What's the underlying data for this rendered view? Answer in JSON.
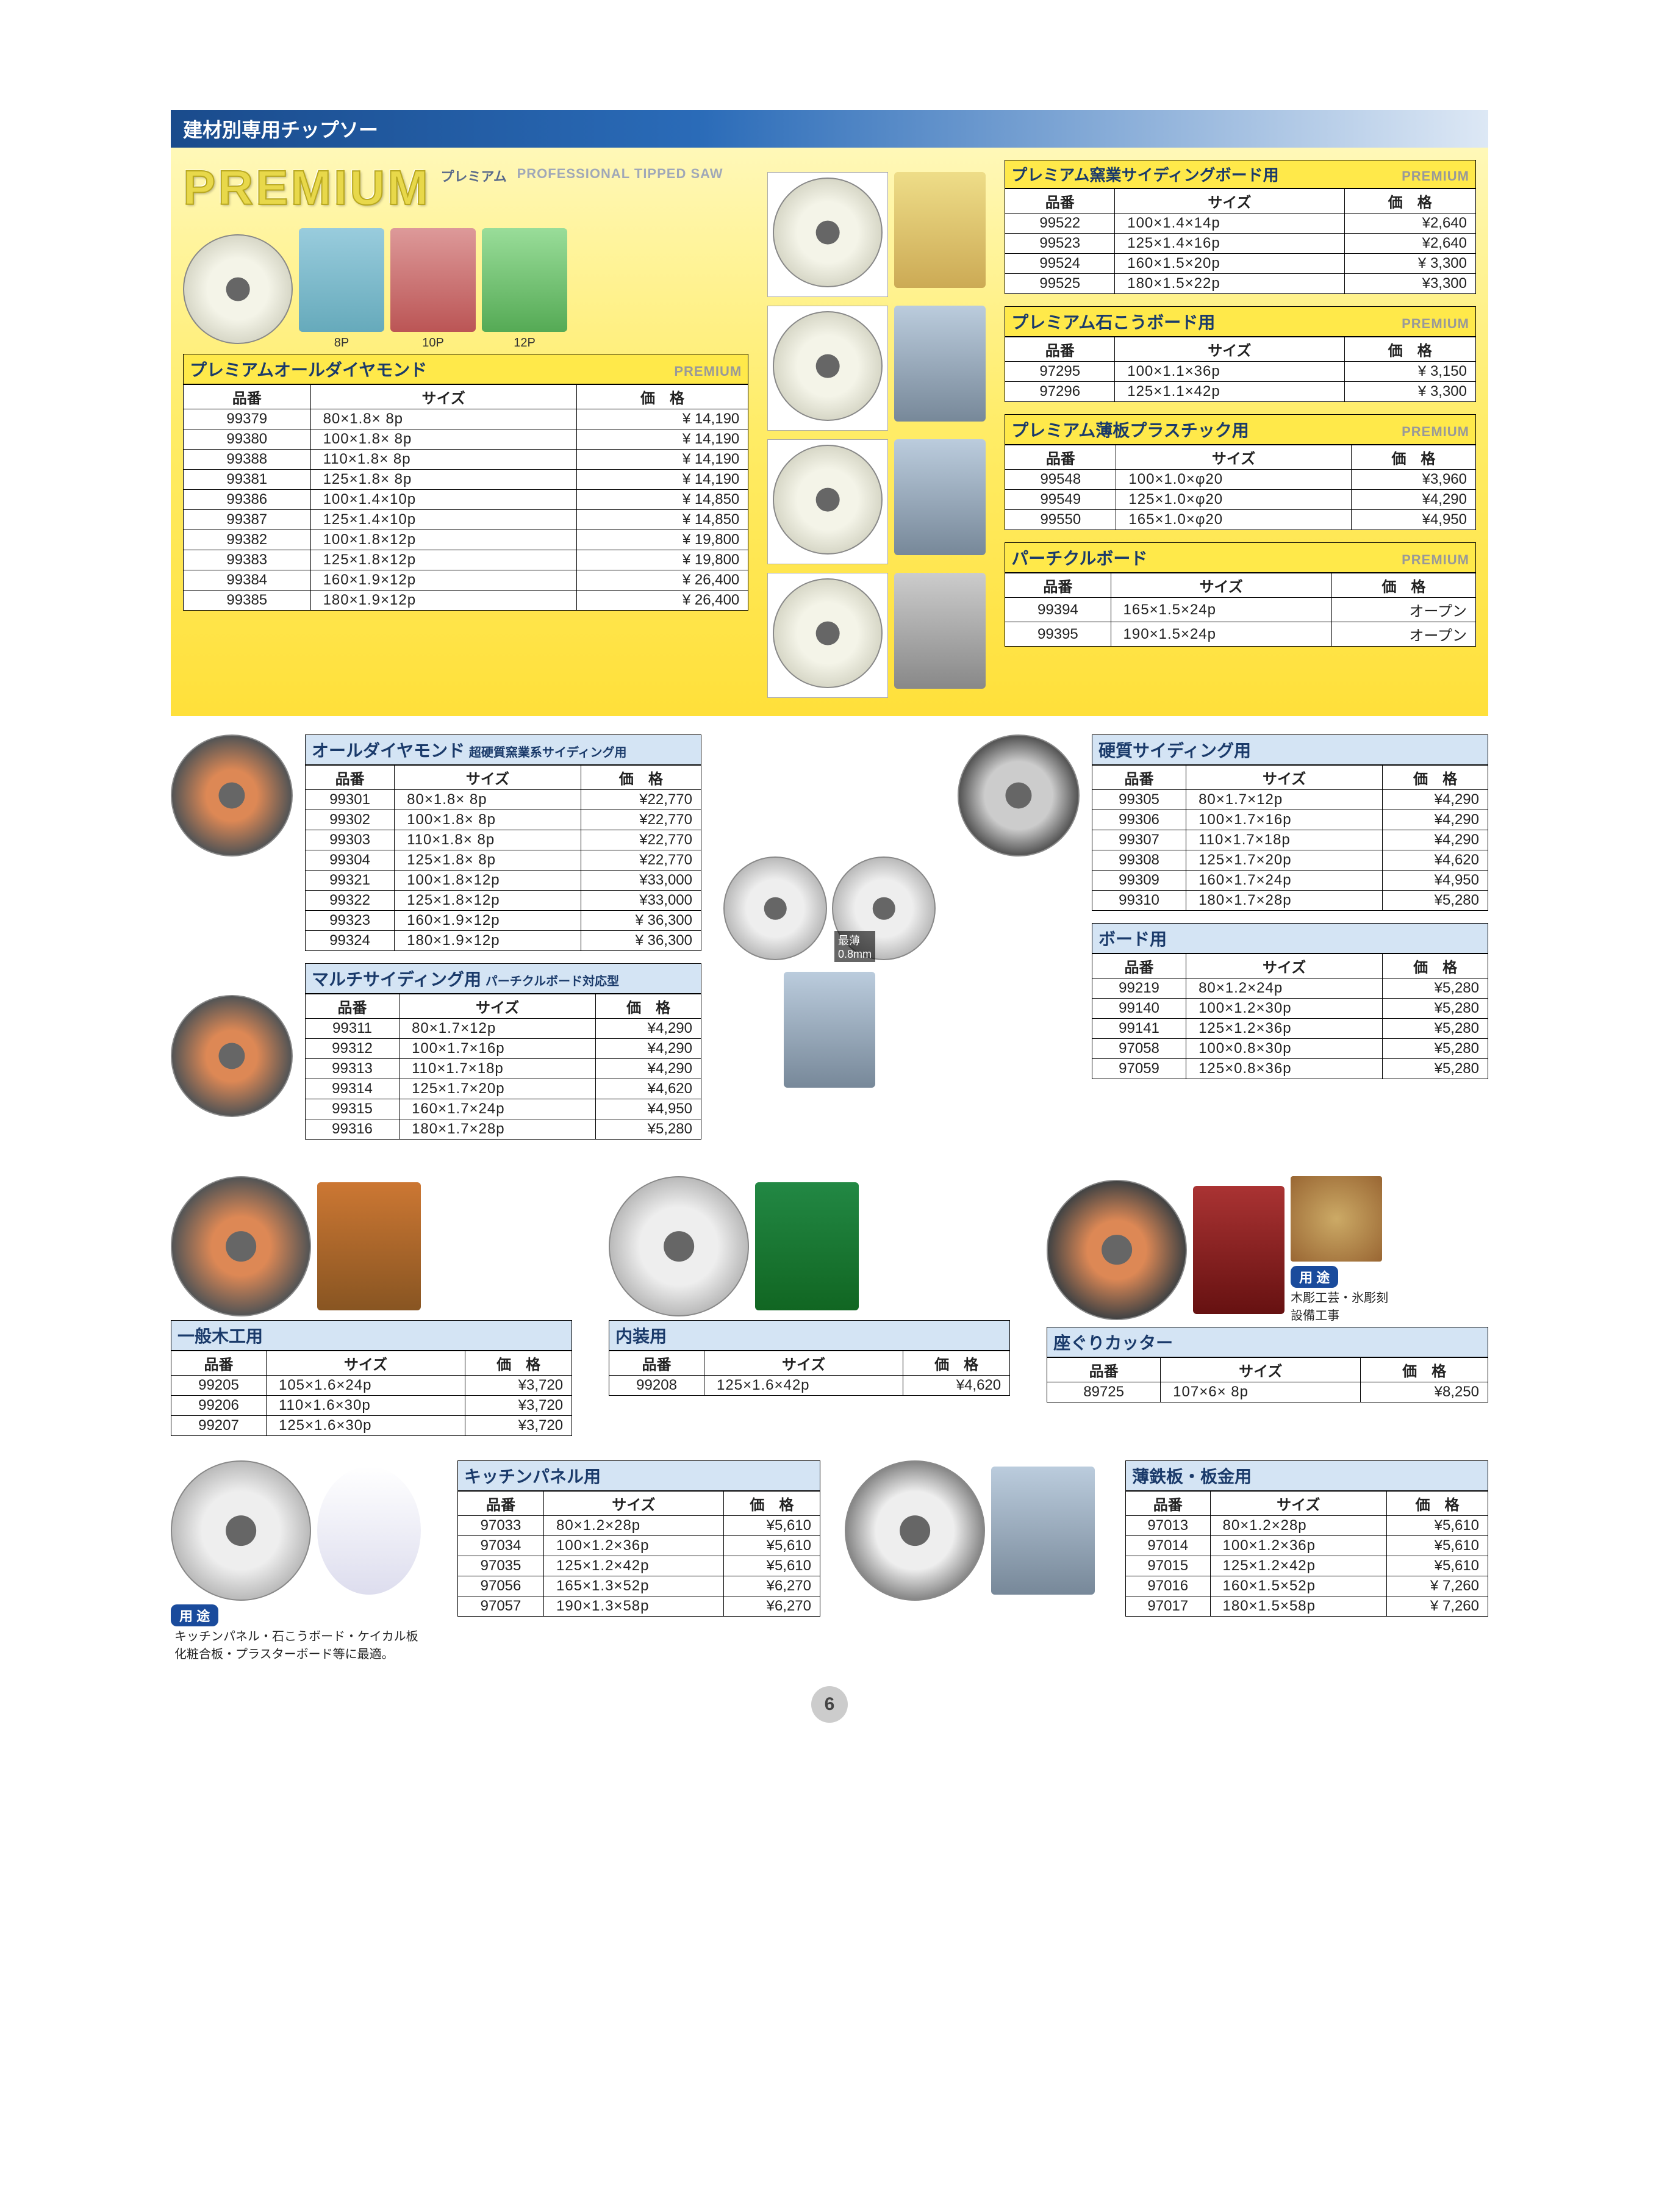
{
  "header": "建材別専用チップソー",
  "premium": {
    "title": "PREMIUM",
    "sub1": "プレミアム",
    "sub2": "PROFESSIONAL TIPPED SAW"
  },
  "pkg_labels": [
    "8P",
    "10P",
    "12P"
  ],
  "cols": {
    "code": "品番",
    "size": "サイズ",
    "price": "価　格"
  },
  "premium_tag": "PREMIUM",
  "tables": {
    "all_diamond_premium": {
      "title": "プレミアムオールダイヤモンド",
      "rows": [
        [
          "99379",
          "80×1.8×  8p",
          "¥ 14,190"
        ],
        [
          "99380",
          "100×1.8×  8p",
          "¥ 14,190"
        ],
        [
          "99388",
          "110×1.8×  8p",
          "¥ 14,190"
        ],
        [
          "99381",
          "125×1.8×  8p",
          "¥ 14,190"
        ],
        [
          "99386",
          "100×1.4×10p",
          "¥ 14,850"
        ],
        [
          "99387",
          "125×1.4×10p",
          "¥ 14,850"
        ],
        [
          "99382",
          "100×1.8×12p",
          "¥ 19,800"
        ],
        [
          "99383",
          "125×1.8×12p",
          "¥ 19,800"
        ],
        [
          "99384",
          "160×1.9×12p",
          "¥ 26,400"
        ],
        [
          "99385",
          "180×1.9×12p",
          "¥ 26,400"
        ]
      ]
    },
    "yogyo_siding": {
      "title": "プレミアム窯業サイディングボード用",
      "rows": [
        [
          "99522",
          "100×1.4×14p",
          "¥2,640"
        ],
        [
          "99523",
          "125×1.4×16p",
          "¥2,640"
        ],
        [
          "99524",
          "160×1.5×20p",
          "¥ 3,300"
        ],
        [
          "99525",
          "180×1.5×22p",
          "¥3,300"
        ]
      ]
    },
    "gypsum": {
      "title": "プレミアム石こうボード用",
      "rows": [
        [
          "97295",
          "100×1.1×36p",
          "¥ 3,150"
        ],
        [
          "97296",
          "125×1.1×42p",
          "¥ 3,300"
        ]
      ]
    },
    "thin_plastic": {
      "title": "プレミアム薄板プラスチック用",
      "rows": [
        [
          "99548",
          "100×1.0×φ20",
          "¥3,960"
        ],
        [
          "99549",
          "125×1.0×φ20",
          "¥4,290"
        ],
        [
          "99550",
          "165×1.0×φ20",
          "¥4,950"
        ]
      ]
    },
    "particle": {
      "title": "パーチクルボード",
      "rows": [
        [
          "99394",
          "165×1.5×24p",
          "オープン"
        ],
        [
          "99395",
          "190×1.5×24p",
          "オープン"
        ]
      ]
    },
    "all_diamond": {
      "title": "オールダイヤモンド",
      "sub": "超硬質窯業系サイディング用",
      "rows": [
        [
          "99301",
          "80×1.8×  8p",
          "¥22,770"
        ],
        [
          "99302",
          "100×1.8×  8p",
          "¥22,770"
        ],
        [
          "99303",
          "110×1.8×  8p",
          "¥22,770"
        ],
        [
          "99304",
          "125×1.8×  8p",
          "¥22,770"
        ],
        [
          "99321",
          "100×1.8×12p",
          "¥33,000"
        ],
        [
          "99322",
          "125×1.8×12p",
          "¥33,000"
        ],
        [
          "99323",
          "160×1.9×12p",
          "¥ 36,300"
        ],
        [
          "99324",
          "180×1.9×12p",
          "¥ 36,300"
        ]
      ]
    },
    "multi_siding": {
      "title": "マルチサイディング用",
      "sub": "パーチクルボード対応型",
      "rows": [
        [
          "99311",
          "80×1.7×12p",
          "¥4,290"
        ],
        [
          "99312",
          "100×1.7×16p",
          "¥4,290"
        ],
        [
          "99313",
          "110×1.7×18p",
          "¥4,290"
        ],
        [
          "99314",
          "125×1.7×20p",
          "¥4,620"
        ],
        [
          "99315",
          "160×1.7×24p",
          "¥4,950"
        ],
        [
          "99316",
          "180×1.7×28p",
          "¥5,280"
        ]
      ]
    },
    "hard_siding": {
      "title": "硬質サイディング用",
      "rows": [
        [
          "99305",
          "80×1.7×12p",
          "¥4,290"
        ],
        [
          "99306",
          "100×1.7×16p",
          "¥4,290"
        ],
        [
          "99307",
          "110×1.7×18p",
          "¥4,290"
        ],
        [
          "99308",
          "125×1.7×20p",
          "¥4,620"
        ],
        [
          "99309",
          "160×1.7×24p",
          "¥4,950"
        ],
        [
          "99310",
          "180×1.7×28p",
          "¥5,280"
        ]
      ]
    },
    "board": {
      "title": "ボード用",
      "rows": [
        [
          "99219",
          "80×1.2×24p",
          "¥5,280"
        ],
        [
          "99140",
          "100×1.2×30p",
          "¥5,280"
        ],
        [
          "99141",
          "125×1.2×36p",
          "¥5,280"
        ],
        [
          "97058",
          "100×0.8×30p",
          "¥5,280"
        ],
        [
          "97059",
          "125×0.8×36p",
          "¥5,280"
        ]
      ]
    },
    "wood": {
      "title": "一般木工用",
      "rows": [
        [
          "99205",
          "105×1.6×24p",
          "¥3,720"
        ],
        [
          "99206",
          "110×1.6×30p",
          "¥3,720"
        ],
        [
          "99207",
          "125×1.6×30p",
          "¥3,720"
        ]
      ]
    },
    "interior": {
      "title": "内装用",
      "rows": [
        [
          "99208",
          "125×1.6×42p",
          "¥4,620"
        ]
      ]
    },
    "zaguri": {
      "title": "座ぐりカッター",
      "rows": [
        [
          "89725",
          "107×6×  8p",
          "¥8,250"
        ]
      ],
      "usage_label": "用 途",
      "usage_text": "木彫工芸・氷彫刻\n設備工事"
    },
    "kitchen": {
      "title": "キッチンパネル用",
      "rows": [
        [
          "97033",
          "80×1.2×28p",
          "¥5,610"
        ],
        [
          "97034",
          "100×1.2×36p",
          "¥5,610"
        ],
        [
          "97035",
          "125×1.2×42p",
          "¥5,610"
        ],
        [
          "97056",
          "165×1.3×52p",
          "¥6,270"
        ],
        [
          "97057",
          "190×1.3×58p",
          "¥6,270"
        ]
      ],
      "usage_label": "用 途",
      "usage_text": "キッチンパネル・石こうボード・ケイカル板\n化粧合板・プラスターボード等に最適。"
    },
    "thin_steel": {
      "title": "薄鉄板・板金用",
      "rows": [
        [
          "97013",
          "80×1.2×28p",
          "¥5,610"
        ],
        [
          "97014",
          "100×1.2×36p",
          "¥5,610"
        ],
        [
          "97015",
          "125×1.2×42p",
          "¥5,610"
        ],
        [
          "97016",
          "160×1.5×52p",
          "¥ 7,260"
        ],
        [
          "97017",
          "180×1.5×58p",
          "¥ 7,260"
        ]
      ]
    }
  },
  "board_note": "最薄\n0.8mm",
  "page_number": "6"
}
